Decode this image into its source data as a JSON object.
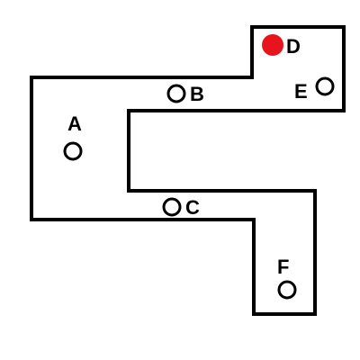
{
  "colors": {
    "background": "#ffffff",
    "outline": "#000000",
    "text": "#000000",
    "active_marker": "#e8141d"
  },
  "nodes": [
    {
      "id": "A",
      "label": "A",
      "state": "empty"
    },
    {
      "id": "B",
      "label": "B",
      "state": "empty"
    },
    {
      "id": "C",
      "label": "C",
      "state": "empty"
    },
    {
      "id": "D",
      "label": "D",
      "state": "filled"
    },
    {
      "id": "E",
      "label": "E",
      "state": "empty"
    },
    {
      "id": "F",
      "label": "F",
      "state": "empty"
    }
  ]
}
